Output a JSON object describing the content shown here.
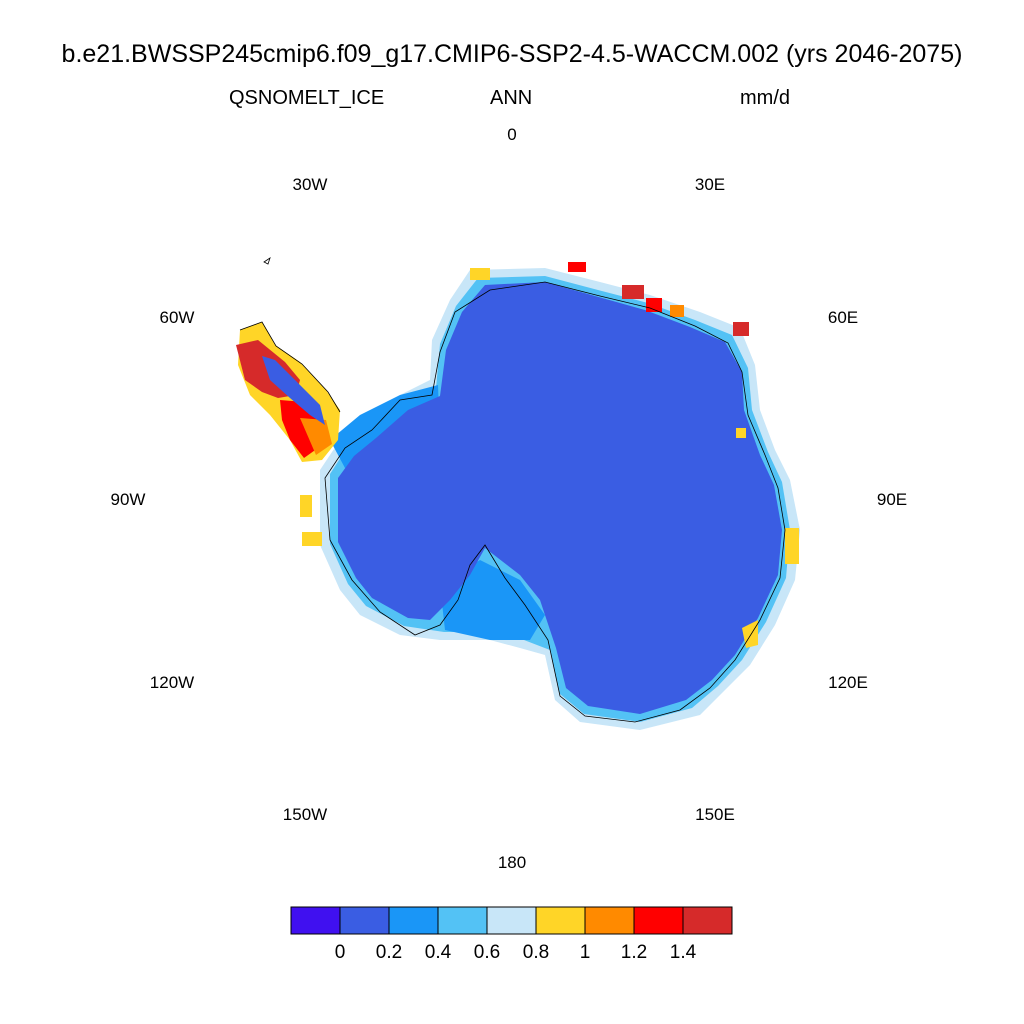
{
  "header": {
    "title": "b.e21.BWSSP245cmip6.f09_g17.CMIP6-SSP2-4.5-WACCM.002 (yrs 2046-2075)",
    "variable": "QSNOMELT_ICE",
    "season": "ANN",
    "units": "mm/d"
  },
  "map": {
    "projection": "south-polar-stereographic",
    "region": "Antarctica",
    "longitude_labels": [
      "0",
      "30E",
      "60E",
      "90E",
      "120E",
      "150E",
      "180",
      "150W",
      "120W",
      "90W",
      "60W",
      "30W"
    ],
    "interior_color": "#3a5de3"
  },
  "colorbar": {
    "labels": [
      "0",
      "0.2",
      "0.4",
      "0.6",
      "0.8",
      "1",
      "1.2",
      "1.4"
    ],
    "colors": [
      "#4010f0",
      "#3a5de3",
      "#1a96f7",
      "#53c2f5",
      "#c8e6f8",
      "#ffd527",
      "#ff8a00",
      "#ff0000",
      "#d62a2a"
    ]
  }
}
